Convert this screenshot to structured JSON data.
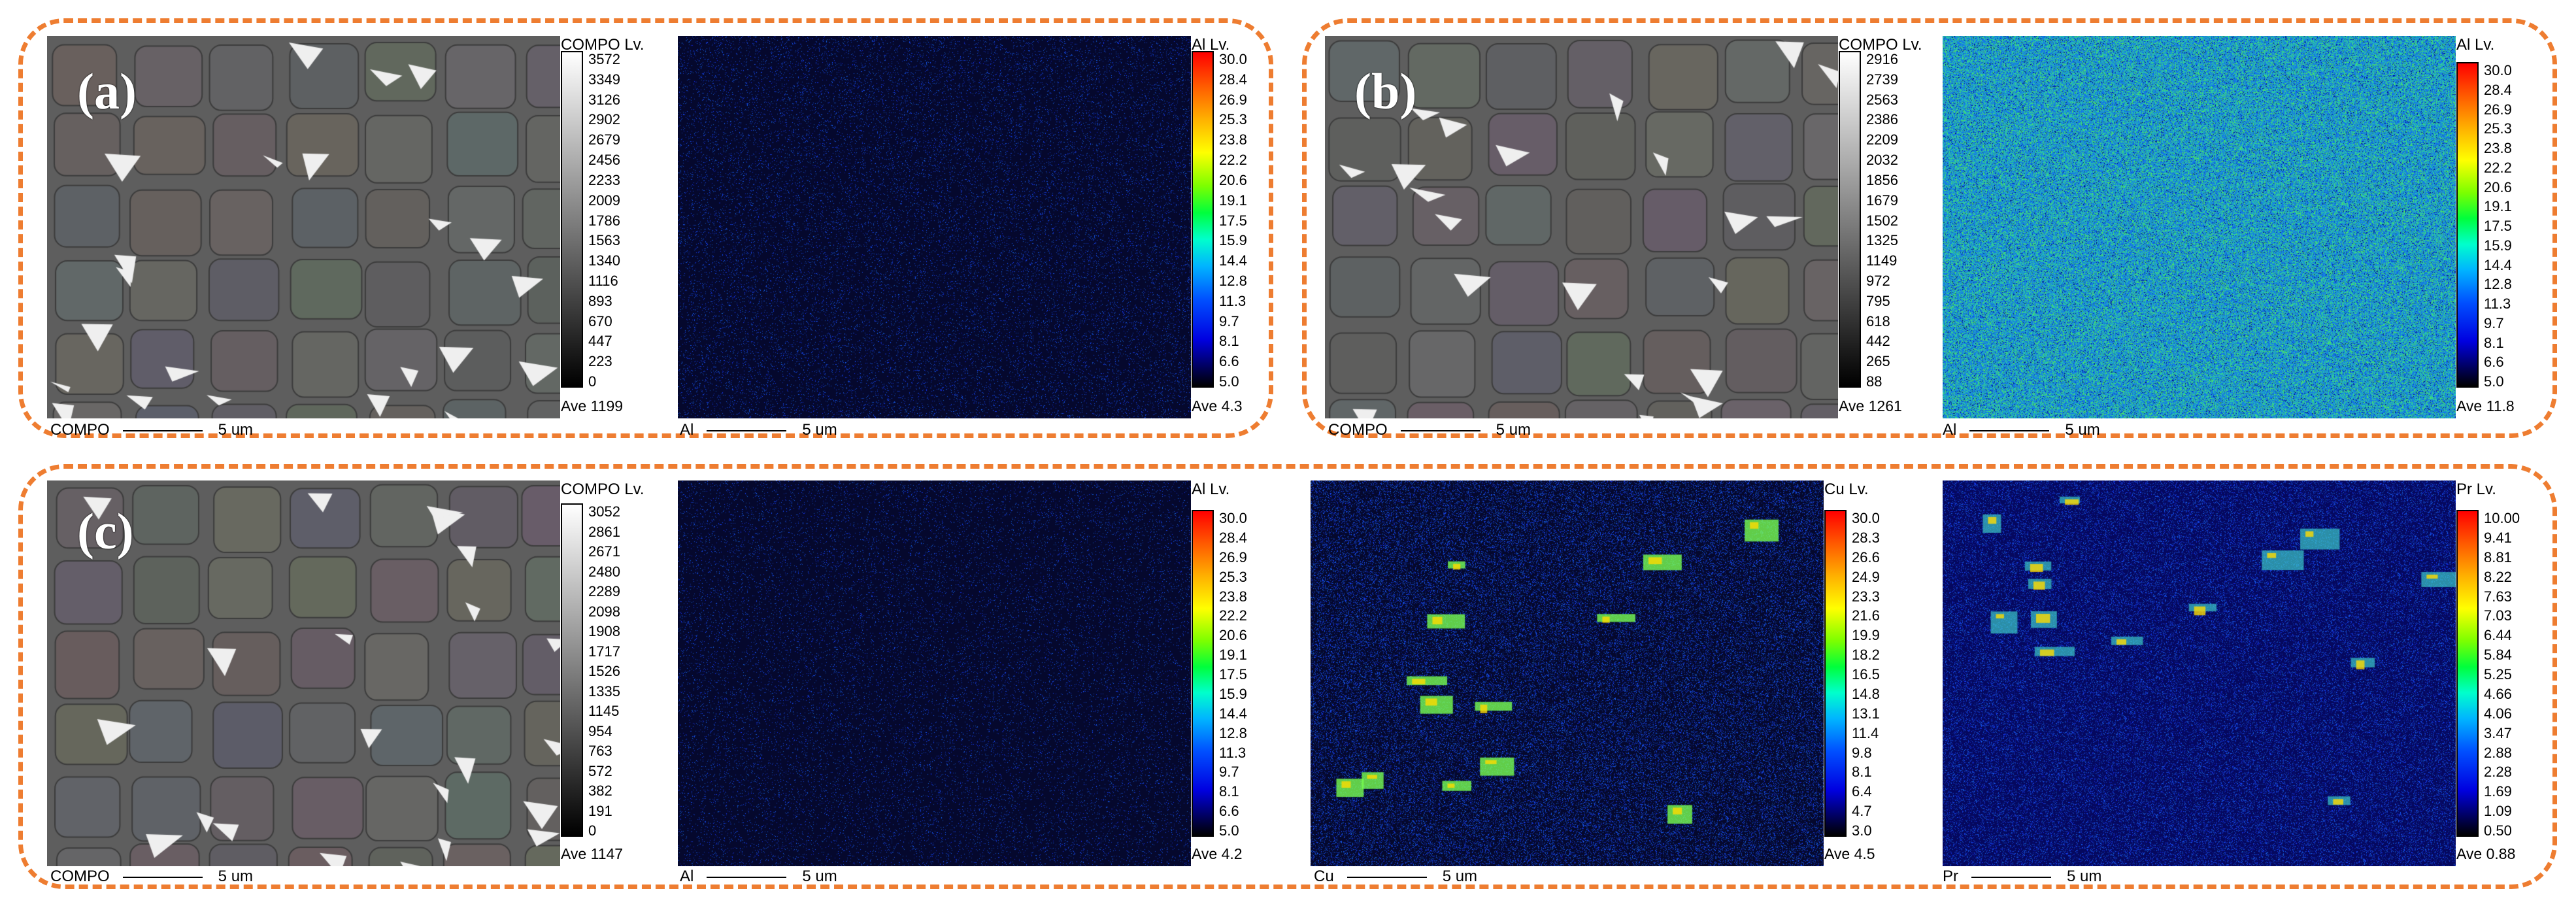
{
  "panels": [
    {
      "label": "(a)",
      "compo": {
        "title": "COMPO Lv.",
        "values": [
          "3572",
          "3349",
          "3126",
          "2902",
          "2679",
          "2456",
          "2233",
          "2009",
          "1786",
          "1563",
          "1340",
          "1116",
          "893",
          "670",
          "447",
          "223",
          "0"
        ],
        "ave": "Ave 1199",
        "caption": "COMPO",
        "scale": "5 um"
      },
      "maps": [
        {
          "element": "Al",
          "title": "Al Lv.",
          "values": [
            "30.0",
            "28.4",
            "26.9",
            "25.3",
            "23.8",
            "22.2",
            "20.6",
            "19.1",
            "17.5",
            "15.9",
            "14.4",
            "12.8",
            "11.3",
            "9.7",
            "8.1",
            "6.6",
            "5.0"
          ],
          "ave": "Ave 4.3",
          "caption": "Al",
          "scale": "5 um"
        }
      ]
    },
    {
      "label": "(b)",
      "compo": {
        "title": "COMPO Lv.",
        "values": [
          "2916",
          "2739",
          "2563",
          "2386",
          "2209",
          "2032",
          "1856",
          "1679",
          "1502",
          "1325",
          "1149",
          "972",
          "795",
          "618",
          "442",
          "265",
          "88"
        ],
        "ave": "Ave 1261",
        "caption": "COMPO",
        "scale": "5 um"
      },
      "maps": [
        {
          "element": "Al",
          "title": "Al Lv.",
          "values": [
            "30.0",
            "28.4",
            "26.9",
            "25.3",
            "23.8",
            "22.2",
            "20.6",
            "19.1",
            "17.5",
            "15.9",
            "14.4",
            "12.8",
            "11.3",
            "9.7",
            "8.1",
            "6.6",
            "5.0"
          ],
          "ave": "Ave 11.8",
          "caption": "Al",
          "scale": "5 um"
        }
      ]
    },
    {
      "label": "(c)",
      "compo": {
        "title": "COMPO Lv.",
        "values": [
          "3052",
          "2861",
          "2671",
          "2480",
          "2289",
          "2098",
          "1908",
          "1717",
          "1526",
          "1335",
          "1145",
          "954",
          "763",
          "572",
          "382",
          "191",
          "0"
        ],
        "ave": "Ave 1147",
        "caption": "COMPO",
        "scale": "5 um"
      },
      "maps": [
        {
          "element": "Al",
          "title": "Al Lv.",
          "values": [
            "30.0",
            "28.4",
            "26.9",
            "25.3",
            "23.8",
            "22.2",
            "20.6",
            "19.1",
            "17.5",
            "15.9",
            "14.4",
            "12.8",
            "11.3",
            "9.7",
            "8.1",
            "6.6",
            "5.0"
          ],
          "ave": "Ave 4.2",
          "caption": "Al",
          "scale": "5 um"
        },
        {
          "element": "Cu",
          "title": "Cu Lv.",
          "values": [
            "30.0",
            "28.3",
            "26.6",
            "24.9",
            "23.3",
            "21.6",
            "19.9",
            "18.2",
            "16.5",
            "14.8",
            "13.1",
            "11.4",
            "9.8",
            "8.1",
            "6.4",
            "4.7",
            "3.0"
          ],
          "ave": "Ave 4.5",
          "caption": "Cu",
          "scale": "5 um"
        },
        {
          "element": "Pr",
          "title": "Pr Lv.",
          "values": [
            "10.00",
            "9.41",
            "8.81",
            "8.22",
            "7.63",
            "7.03",
            "6.44",
            "5.84",
            "5.25",
            "4.66",
            "4.06",
            "3.47",
            "2.88",
            "2.28",
            "1.69",
            "1.09",
            "0.50"
          ],
          "ave": "Ave 0.88",
          "caption": "Pr",
          "scale": "5 um"
        }
      ]
    }
  ]
}
